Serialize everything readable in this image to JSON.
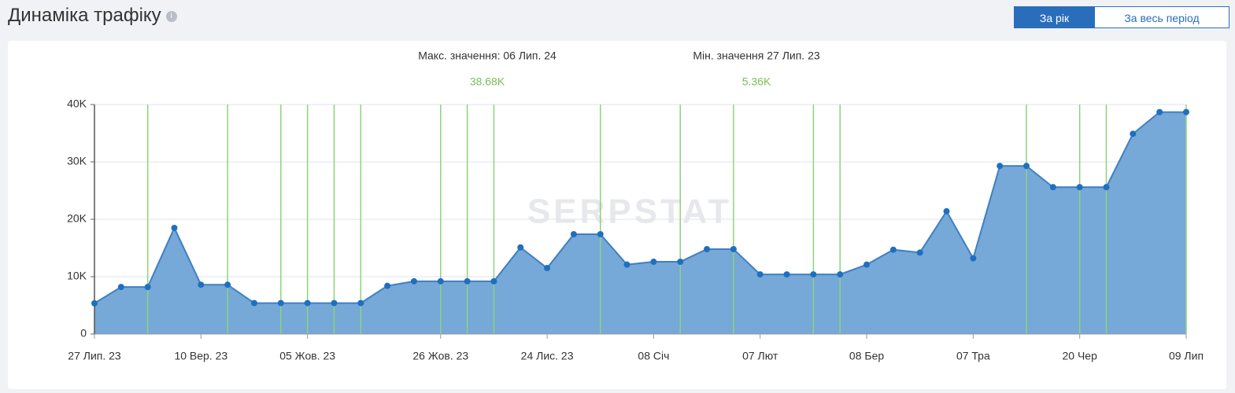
{
  "header": {
    "title": "Динаміка трафіку",
    "buttons": [
      "За рік",
      "За весь період"
    ],
    "active_button": 0
  },
  "chart_data": {
    "type": "area",
    "annotations": [
      {
        "label": "Макс. значення: 06 Лип. 24",
        "value_label": "38.68K",
        "value": 38680
      },
      {
        "label": "Мін. значення 27 Лип. 23",
        "value_label": "5.36K",
        "value": 5360
      }
    ],
    "watermark": "SERPSTAT",
    "categories": [
      "27 Лип. 23",
      null,
      null,
      null,
      "10 Вер. 23",
      null,
      null,
      null,
      "05 Жов. 23",
      null,
      null,
      null,
      null,
      "26 Жов. 23",
      null,
      null,
      null,
      "24 Лис. 23",
      null,
      null,
      null,
      "08 Січ",
      null,
      null,
      null,
      "07 Лют",
      null,
      null,
      null,
      "08 Бер",
      null,
      null,
      null,
      "07 Тра",
      null,
      null,
      null,
      "20 Чер",
      null,
      null,
      null,
      "09 Лип"
    ],
    "values": [
      5360,
      8200,
      8200,
      18500,
      8600,
      8600,
      5400,
      5400,
      5400,
      5400,
      5400,
      8400,
      9200,
      9200,
      9200,
      9200,
      15100,
      11500,
      17400,
      17400,
      12100,
      12600,
      12600,
      14800,
      14800,
      10400,
      10400,
      10400,
      10400,
      12100,
      14700,
      14200,
      21400,
      13200,
      29300,
      29300,
      25600,
      25600,
      25600,
      34900,
      38680,
      38680
    ],
    "color": "#6fa3d6",
    "line_color": "#3f80c4",
    "point_color": "#1f6fc0",
    "event_indices": [
      2,
      5,
      7,
      8,
      9,
      10,
      13,
      14,
      15,
      19,
      22,
      24,
      27,
      28,
      35,
      37,
      38,
      41
    ],
    "event_color": "#8fd37a",
    "ylim": [
      0,
      40000
    ],
    "yticks": [
      0,
      {
        "value": 10000,
        "label": "10K"
      },
      {
        "value": 20000,
        "label": "20K"
      },
      {
        "value": 30000,
        "label": "30K"
      },
      {
        "value": 40000,
        "label": "40K"
      }
    ],
    "grid": true
  }
}
